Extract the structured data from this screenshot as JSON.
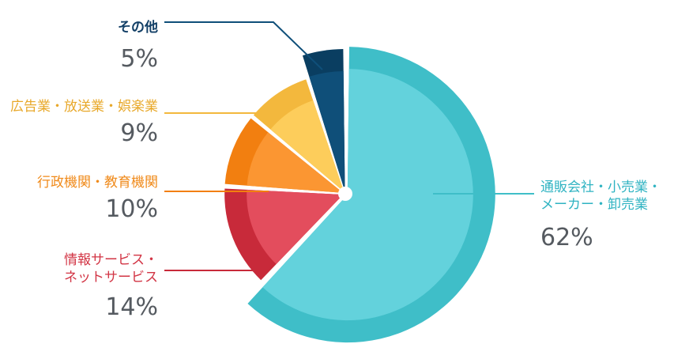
{
  "chart_data": {
    "type": "pie",
    "slices": [
      {
        "label": "通販会社・小売業・メーカー・卸売業",
        "label_lines": [
          "通販会社・小売業・",
          "メーカー・卸売業"
        ],
        "value": 62,
        "value_label": "62%",
        "color": "#63d2dc",
        "edge_color": "#3fbec8"
      },
      {
        "label": "情報サービス・ネットサービス",
        "label_lines": [
          "情報サービス・",
          "ネットサービス"
        ],
        "value": 14,
        "value_label": "14%",
        "color": "#e34d5d",
        "edge_color": "#c82a3a"
      },
      {
        "label": "行政機関・教育機関",
        "label_lines": [
          "行政機関・教育機関"
        ],
        "value": 10,
        "value_label": "10%",
        "color": "#fb9632",
        "edge_color": "#f27f10"
      },
      {
        "label": "広告業・放送業・娯楽業",
        "label_lines": [
          "広告業・放送業・娯楽業"
        ],
        "value": 9,
        "value_label": "9%",
        "color": "#fdcd5b",
        "edge_color": "#f3b83d"
      },
      {
        "label": "その他",
        "label_lines": [
          "その他"
        ],
        "value": 5,
        "value_label": "5%",
        "color": "#0f4f79",
        "edge_color": "#0a3e61"
      }
    ]
  }
}
